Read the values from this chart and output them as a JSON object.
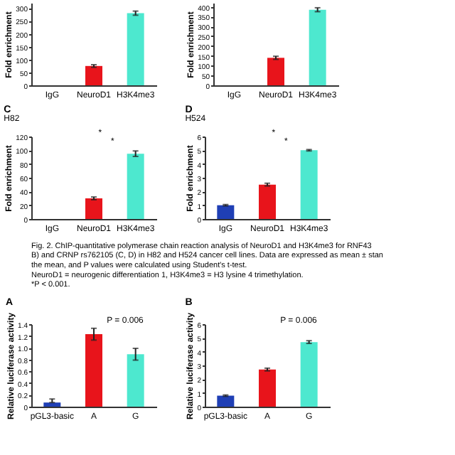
{
  "chart_data": [
    {
      "type": "bar",
      "ylabel": "Fold enrichment",
      "categories": [
        "IgG",
        "NeuroD1",
        "H3K4me3"
      ],
      "values": [
        0,
        75,
        280
      ],
      "errors": [
        null,
        5,
        8
      ],
      "colors": [
        "#1f3fb5",
        "#e8141b",
        "#4de8cf"
      ],
      "ylim": [
        0,
        320
      ],
      "yticks": [
        0,
        50,
        100,
        150,
        200,
        250,
        300
      ]
    },
    {
      "type": "bar",
      "ylabel": "Fold enrichment",
      "categories": [
        "IgG",
        "NeuroD1",
        "H3K4me3"
      ],
      "values": [
        0,
        140,
        385
      ],
      "errors": [
        null,
        8,
        10
      ],
      "colors": [
        "#1f3fb5",
        "#e8141b",
        "#4de8cf"
      ],
      "ylim": [
        0,
        420
      ],
      "yticks": [
        0,
        50,
        100,
        150,
        200,
        250,
        300,
        350,
        400
      ]
    },
    {
      "type": "bar",
      "title": "C",
      "subtitle": "H82",
      "ylabel": "Fold enrichment",
      "categories": [
        "IgG",
        "NeuroD1",
        "H3K4me3"
      ],
      "values": [
        0,
        30,
        95
      ],
      "errors": [
        null,
        2,
        4
      ],
      "colors": [
        "#1f3fb5",
        "#e8141b",
        "#4de8cf"
      ],
      "ylim": [
        0,
        120
      ],
      "yticks": [
        0,
        20,
        40,
        60,
        80,
        100,
        120
      ],
      "annotations": [
        "*",
        "*"
      ]
    },
    {
      "type": "bar",
      "title": "D",
      "subtitle": "H524",
      "ylabel": "Fold enrichment",
      "categories": [
        "IgG",
        "NeuroD1",
        "H3K4me3"
      ],
      "values": [
        1,
        2.5,
        5
      ],
      "errors": [
        0.05,
        0.1,
        0.05
      ],
      "colors": [
        "#1f3fb5",
        "#e8141b",
        "#4de8cf"
      ],
      "ylim": [
        0,
        6
      ],
      "yticks": [
        0,
        1,
        2,
        3,
        4,
        5,
        6
      ],
      "annotations": [
        "*",
        "*"
      ]
    },
    {
      "type": "other",
      "annotations": [
        "Fig. 2. ChIP-quantitative polymerase chain reaction analysis of NeuroD1 and H3K4me3 for RNF43",
        "B) and CRNP rs762105 (C, D) in H82 and H524 cancer cell lines. Data are expressed as mean ± stan",
        "the mean, and P values were calculated using Student's t-test.",
        "NeuroD1 = neurogenic differentiation 1, H3K4me3 = H3 lysine 4 trimethylation.",
        "*P < 0.001."
      ]
    },
    {
      "type": "bar",
      "title": "A",
      "ylabel": "Relative luciferase activity",
      "categories": [
        "pGL3-basic",
        "A",
        "G"
      ],
      "values": [
        0.07,
        1.23,
        0.89
      ],
      "errors": [
        [
          0.07,
          0.13
        ],
        0.1,
        0.1
      ],
      "colors": [
        "#1f3fb5",
        "#e8141b",
        "#4de8cf"
      ],
      "ylim": [
        0,
        1.4
      ],
      "yticks": [
        0,
        0.2,
        0.4,
        0.6,
        0.8,
        {
          "value": 1.0,
          "label": "1.0"
        },
        1.2,
        1.4
      ],
      "annotations": [
        "P = 0.006"
      ]
    },
    {
      "type": "bar",
      "title": "B",
      "ylabel": "Relative luciferase activity",
      "categories": [
        "pGL3-basic",
        "A",
        "G"
      ],
      "values": [
        0.8,
        2.7,
        4.7
      ],
      "errors": [
        0.05,
        0.1,
        0.1
      ],
      "colors": [
        "#1f3fb5",
        "#e8141b",
        "#4de8cf"
      ],
      "ylim": [
        0,
        6
      ],
      "yticks": [
        0,
        1,
        2,
        3,
        4,
        5,
        6
      ],
      "annotations": [
        "P = 0.006"
      ]
    }
  ]
}
